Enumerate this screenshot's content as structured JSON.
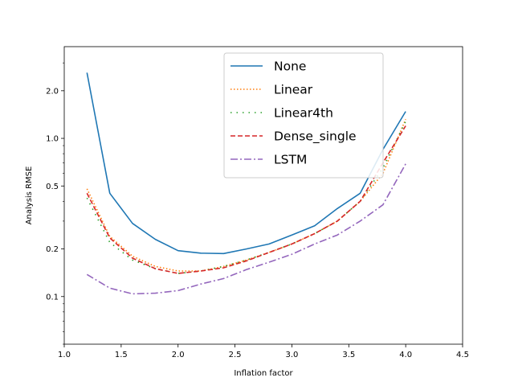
{
  "chart_data": {
    "type": "line",
    "title": "",
    "xlabel": "Inflation factor",
    "ylabel": "Analysis RMSE",
    "xlim": [
      1.0,
      4.5
    ],
    "ylim": [
      0.05,
      3.8
    ],
    "yscale": "log",
    "grid": false,
    "legend_position": "top-right",
    "xticks": [
      1.0,
      1.5,
      2.0,
      2.5,
      3.0,
      3.5,
      4.0,
      4.5
    ],
    "xtick_labels": [
      "1.0",
      "1.5",
      "2.0",
      "2.5",
      "3.0",
      "3.5",
      "4.0",
      "4.5"
    ],
    "yticks": [
      0.1,
      0.2,
      0.5,
      1.0,
      2.0
    ],
    "ytick_labels": [
      "0.1",
      "0.2",
      "0.5",
      "1.0",
      "2.0"
    ],
    "x": [
      1.2,
      1.4,
      1.6,
      1.8,
      2.0,
      2.2,
      2.4,
      2.6,
      2.8,
      3.0,
      3.2,
      3.4,
      3.6,
      3.8,
      4.0
    ],
    "series": [
      {
        "name": "None",
        "color": "#1f77b4",
        "dash": "solid",
        "values": [
          2.6,
          0.45,
          0.29,
          0.23,
          0.195,
          0.188,
          0.187,
          0.2,
          0.215,
          0.245,
          0.28,
          0.36,
          0.45,
          0.85,
          1.48
        ]
      },
      {
        "name": "Linear",
        "color": "#ff7f0e",
        "dash": "dotted",
        "values": [
          0.48,
          0.24,
          0.18,
          0.155,
          0.145,
          0.145,
          0.155,
          0.17,
          0.19,
          0.215,
          0.25,
          0.3,
          0.4,
          0.6,
          1.32
        ]
      },
      {
        "name": "Linear4th",
        "color": "#2ca02c",
        "dash": "loosedot",
        "values": [
          0.42,
          0.22,
          0.17,
          0.15,
          0.14,
          0.145,
          0.155,
          0.17,
          0.19,
          0.215,
          0.25,
          0.3,
          0.4,
          0.65,
          1.28
        ]
      },
      {
        "name": "Dense_single",
        "color": "#d62728",
        "dash": "dashed",
        "values": [
          0.45,
          0.235,
          0.175,
          0.15,
          0.14,
          0.145,
          0.152,
          0.168,
          0.19,
          0.215,
          0.25,
          0.3,
          0.4,
          0.7,
          1.2
        ]
      },
      {
        "name": "LSTM",
        "color": "#9467bd",
        "dash": "dashdot",
        "values": [
          0.138,
          0.113,
          0.104,
          0.105,
          0.109,
          0.12,
          0.13,
          0.148,
          0.165,
          0.185,
          0.215,
          0.245,
          0.3,
          0.38,
          0.69
        ]
      }
    ]
  }
}
